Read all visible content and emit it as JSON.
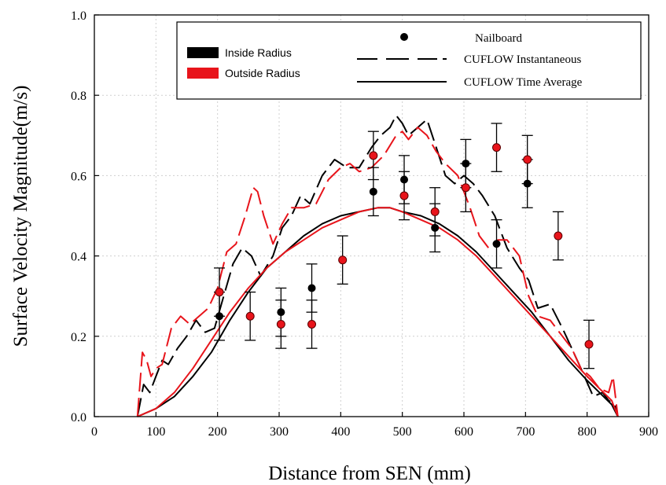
{
  "chart_data": {
    "type": "line",
    "xlabel": "Distance from SEN (mm)",
    "ylabel": "Surface Velocity Magnitude(m/s)",
    "xlim": [
      0,
      900
    ],
    "ylim": [
      0,
      1.0
    ],
    "x_ticks": [
      0,
      100,
      200,
      300,
      400,
      500,
      600,
      700,
      800,
      900
    ],
    "y_ticks": [
      0.0,
      0.2,
      0.4,
      0.6,
      0.8,
      1.0
    ],
    "x_tick_labels": [
      "0",
      "100",
      "200",
      "300",
      "400",
      "500",
      "600",
      "700",
      "800",
      "900"
    ],
    "y_tick_labels": [
      "0.0",
      "0.2",
      "0.4",
      "0.6",
      "0.8",
      "1.0"
    ],
    "grid": "dotted",
    "legend": {
      "placement": "top-right",
      "color_entries": [
        {
          "label": "Inside Radius",
          "color": "#000000"
        },
        {
          "label": "Outside Radius",
          "color": "#e8141b"
        }
      ],
      "style_entries": [
        {
          "label": "Nailboard",
          "style": "marker"
        },
        {
          "label": "CUFLOW Instantaneous",
          "style": "dashed"
        },
        {
          "label": "CUFLOW Time Average",
          "style": "solid"
        }
      ]
    },
    "colors": {
      "inside": "#000000",
      "outside": "#e8141b"
    },
    "series": [
      {
        "name": "Inside Radius",
        "kind": "CUFLOW Instantaneous",
        "color": "#000000",
        "x": [
          70,
          80,
          90,
          100,
          110,
          120,
          135,
          150,
          165,
          180,
          195,
          210,
          225,
          240,
          255,
          270,
          290,
          305,
          320,
          335,
          350,
          370,
          390,
          410,
          430,
          450,
          465,
          480,
          490,
          500,
          510,
          525,
          540,
          555,
          570,
          585,
          600,
          615,
          630,
          650,
          670,
          690,
          705,
          720,
          740,
          760,
          775,
          790,
          810,
          825,
          835,
          845,
          850
        ],
        "y": [
          0.0,
          0.08,
          0.06,
          0.1,
          0.14,
          0.13,
          0.17,
          0.2,
          0.24,
          0.21,
          0.22,
          0.3,
          0.38,
          0.42,
          0.4,
          0.35,
          0.4,
          0.47,
          0.5,
          0.55,
          0.53,
          0.6,
          0.64,
          0.62,
          0.62,
          0.67,
          0.7,
          0.72,
          0.75,
          0.73,
          0.7,
          0.72,
          0.74,
          0.67,
          0.6,
          0.58,
          0.6,
          0.58,
          0.55,
          0.5,
          0.42,
          0.37,
          0.34,
          0.27,
          0.28,
          0.22,
          0.17,
          0.12,
          0.05,
          0.06,
          0.04,
          0.03,
          0.0
        ]
      },
      {
        "name": "Outside Radius",
        "kind": "CUFLOW Instantaneous",
        "color": "#e8141b",
        "x": [
          70,
          78,
          85,
          92,
          100,
          110,
          125,
          140,
          155,
          170,
          185,
          200,
          215,
          230,
          245,
          258,
          265,
          275,
          290,
          305,
          320,
          340,
          360,
          380,
          400,
          415,
          430,
          450,
          470,
          490,
          500,
          510,
          525,
          540,
          555,
          570,
          590,
          610,
          625,
          640,
          655,
          670,
          690,
          705,
          720,
          740,
          760,
          775,
          790,
          805,
          820,
          835,
          842,
          850
        ],
        "y": [
          0.0,
          0.16,
          0.14,
          0.1,
          0.12,
          0.13,
          0.22,
          0.25,
          0.23,
          0.25,
          0.27,
          0.32,
          0.41,
          0.43,
          0.5,
          0.57,
          0.56,
          0.5,
          0.43,
          0.48,
          0.52,
          0.52,
          0.53,
          0.59,
          0.62,
          0.63,
          0.61,
          0.62,
          0.65,
          0.7,
          0.71,
          0.69,
          0.72,
          0.7,
          0.66,
          0.63,
          0.6,
          0.52,
          0.45,
          0.42,
          0.44,
          0.44,
          0.4,
          0.3,
          0.25,
          0.24,
          0.2,
          0.17,
          0.12,
          0.1,
          0.07,
          0.06,
          0.1,
          0.0
        ]
      },
      {
        "name": "Inside Radius",
        "kind": "CUFLOW Time Average",
        "color": "#000000",
        "x": [
          70,
          100,
          130,
          160,
          190,
          220,
          250,
          280,
          310,
          340,
          370,
          400,
          430,
          460,
          480,
          500,
          530,
          560,
          590,
          620,
          650,
          680,
          710,
          740,
          770,
          800,
          820,
          840,
          850
        ],
        "y": [
          0.0,
          0.02,
          0.05,
          0.1,
          0.16,
          0.24,
          0.31,
          0.37,
          0.41,
          0.45,
          0.48,
          0.5,
          0.51,
          0.52,
          0.52,
          0.51,
          0.5,
          0.48,
          0.45,
          0.41,
          0.36,
          0.31,
          0.26,
          0.2,
          0.14,
          0.09,
          0.06,
          0.03,
          0.0
        ]
      },
      {
        "name": "Outside Radius",
        "kind": "CUFLOW Time Average",
        "color": "#e8141b",
        "x": [
          70,
          100,
          130,
          160,
          190,
          220,
          250,
          280,
          310,
          340,
          370,
          400,
          430,
          460,
          480,
          500,
          530,
          560,
          590,
          620,
          650,
          680,
          710,
          740,
          770,
          800,
          820,
          840,
          850
        ],
        "y": [
          0.0,
          0.02,
          0.06,
          0.12,
          0.19,
          0.26,
          0.32,
          0.37,
          0.41,
          0.44,
          0.47,
          0.49,
          0.51,
          0.52,
          0.52,
          0.51,
          0.49,
          0.47,
          0.44,
          0.4,
          0.35,
          0.3,
          0.25,
          0.2,
          0.15,
          0.1,
          0.07,
          0.04,
          0.0
        ]
      },
      {
        "name": "Inside Radius",
        "kind": "Nailboard",
        "color": "#000000",
        "x": [
          203,
          303,
          353,
          453,
          503,
          553,
          603,
          653,
          703
        ],
        "y": [
          0.25,
          0.26,
          0.32,
          0.56,
          0.59,
          0.47,
          0.63,
          0.43,
          0.58
        ],
        "err": [
          0.06,
          0.06,
          0.06,
          0.06,
          0.06,
          0.06,
          0.06,
          0.06,
          0.06
        ]
      },
      {
        "name": "Outside Radius",
        "kind": "Nailboard",
        "color": "#e8141b",
        "x": [
          203,
          253,
          303,
          353,
          403,
          453,
          503,
          553,
          603,
          653,
          703,
          753,
          803
        ],
        "y": [
          0.31,
          0.25,
          0.23,
          0.23,
          0.39,
          0.65,
          0.55,
          0.51,
          0.57,
          0.67,
          0.64,
          0.45,
          0.18
        ],
        "err": [
          0.06,
          0.06,
          0.06,
          0.06,
          0.06,
          0.06,
          0.06,
          0.06,
          0.06,
          0.06,
          0.06,
          0.06,
          0.06
        ]
      }
    ]
  }
}
